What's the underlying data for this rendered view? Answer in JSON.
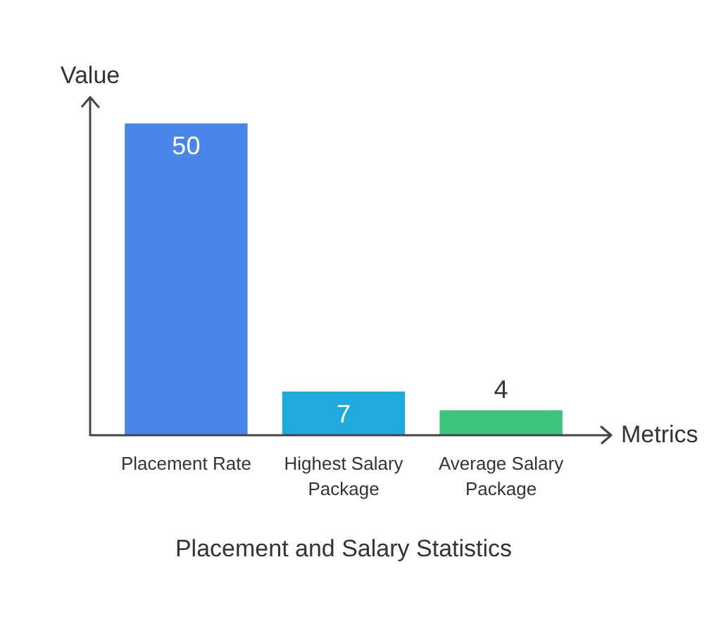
{
  "chart_data": {
    "type": "bar",
    "title": "Placement and Salary Statistics",
    "xlabel": "Metrics",
    "ylabel": "Value",
    "categories": [
      "Placement Rate",
      "Highest Salary Package",
      "Average Salary Package"
    ],
    "values": [
      50,
      7,
      4
    ],
    "colors": [
      "#4a86e8",
      "#1fa9dc",
      "#3cc47c"
    ],
    "data_labels": true
  }
}
